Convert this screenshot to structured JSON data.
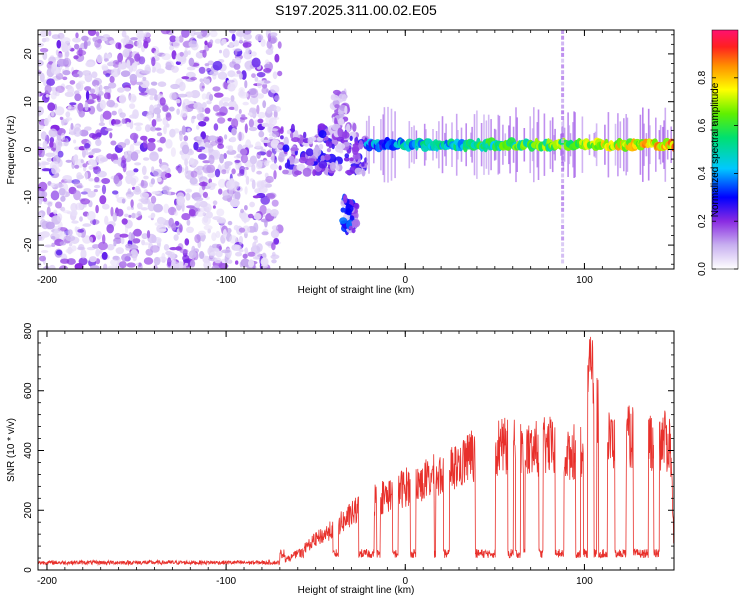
{
  "page": {
    "title": "S197.2025.311.00.02.E05"
  },
  "chart_data": [
    {
      "type": "heatmap",
      "title": "S197.2025.311.00.02.E05",
      "xlabel": "Height of straight line (km)",
      "ylabel": "Frequency (Hz)",
      "xlim": [
        -205,
        150
      ],
      "ylim": [
        -25,
        25
      ],
      "x_ticks": [
        -200,
        -100,
        0,
        100
      ],
      "x_tick_labels": [
        "-200",
        "-100",
        "0",
        "100"
      ],
      "y_ticks": [
        -20,
        -10,
        0,
        10,
        20
      ],
      "y_tick_labels": [
        "-20",
        "-10",
        "0",
        "10",
        "20"
      ],
      "colorbar": {
        "label": "Normalized spectral amplitude",
        "range": [
          0,
          1
        ],
        "ticks": [
          0.0,
          0.2,
          0.4,
          0.6,
          0.8
        ],
        "tick_labels": [
          "0.0",
          "0.2",
          "0.4",
          "0.6",
          "0.8"
        ]
      },
      "segments": [
        {
          "x_range": [
            -205,
            -70
          ],
          "freq_range": [
            -25,
            25
          ],
          "amplitude": 0.05,
          "kind": "noise"
        },
        {
          "x_range": [
            -70,
            -22
          ],
          "freq_range": [
            -5,
            5
          ],
          "amplitude": 0.15,
          "kind": "scattered"
        },
        {
          "x_range": [
            -40,
            -33
          ],
          "freq_range": [
            3,
            12
          ],
          "amplitude": 0.1,
          "kind": "burst"
        },
        {
          "x_range": [
            -35,
            -27
          ],
          "freq_range": [
            -17,
            -10
          ],
          "amplitude": 0.2,
          "kind": "burst"
        },
        {
          "x_range": [
            -22,
            150
          ],
          "freq_center": 1,
          "amplitude": 0.9,
          "kind": "line"
        }
      ]
    },
    {
      "type": "line",
      "xlabel": "Height of straight line (km)",
      "ylabel": "SNR (10 * v/v)",
      "xlim": [
        -205,
        150
      ],
      "ylim": [
        0,
        800
      ],
      "x_ticks": [
        -200,
        -100,
        0,
        100
      ],
      "x_tick_labels": [
        "-200",
        "-100",
        "0",
        "100"
      ],
      "y_ticks": [
        0,
        200,
        400,
        600,
        800
      ],
      "y_tick_labels": [
        "0",
        "200",
        "400",
        "600",
        "800"
      ],
      "color": "#e8302b",
      "series": [
        {
          "name": "SNR",
          "x": [
            -205,
            -70,
            -60,
            -50,
            -40,
            -30,
            -20,
            -10,
            0,
            10,
            20,
            30,
            40,
            50,
            60,
            70,
            80,
            90,
            100,
            103,
            110,
            120,
            130,
            140,
            148,
            150
          ],
          "values": [
            22,
            25,
            60,
            110,
            150,
            200,
            250,
            270,
            300,
            320,
            350,
            380,
            430,
            450,
            440,
            430,
            450,
            420,
            440,
            780,
            460,
            480,
            480,
            470,
            460,
            90
          ]
        }
      ]
    }
  ]
}
